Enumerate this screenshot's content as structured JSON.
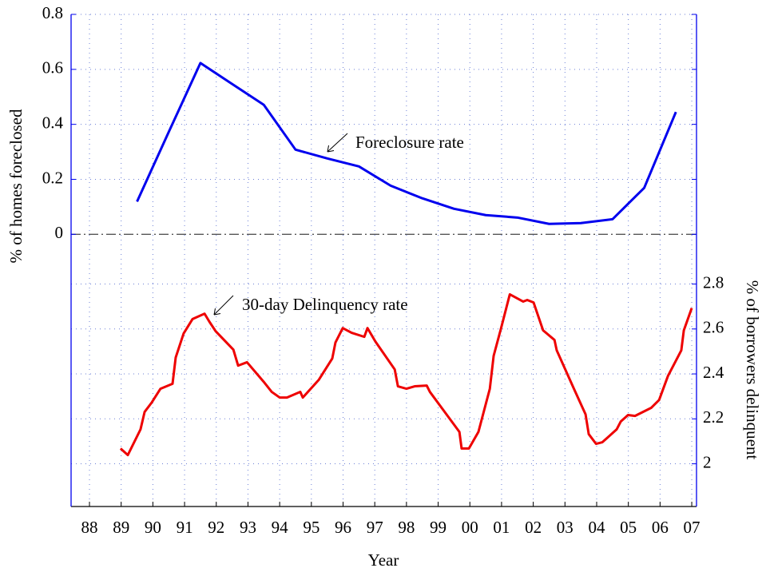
{
  "chart_data": {
    "type": "line",
    "x_label": "Year",
    "y_label": "% of homes foreclosed",
    "y2_label": "% of borrowers delinquent",
    "xlim": [
      1987.42,
      2007.15
    ],
    "xticks": [
      {
        "value": 1988,
        "label": "88"
      },
      {
        "value": 1989,
        "label": "89"
      },
      {
        "value": 1990,
        "label": "90"
      },
      {
        "value": 1991,
        "label": "91"
      },
      {
        "value": 1992,
        "label": "92"
      },
      {
        "value": 1993,
        "label": "93"
      },
      {
        "value": 1994,
        "label": "94"
      },
      {
        "value": 1995,
        "label": "95"
      },
      {
        "value": 1996,
        "label": "96"
      },
      {
        "value": 1997,
        "label": "97"
      },
      {
        "value": 1998,
        "label": "98"
      },
      {
        "value": 1999,
        "label": "99"
      },
      {
        "value": 2000,
        "label": "00"
      },
      {
        "value": 2001,
        "label": "01"
      },
      {
        "value": 2002,
        "label": "02"
      },
      {
        "value": 2003,
        "label": "03"
      },
      {
        "value": 2004,
        "label": "04"
      },
      {
        "value": 2005,
        "label": "05"
      },
      {
        "value": 2006,
        "label": "06"
      },
      {
        "value": 2007,
        "label": "07"
      }
    ],
    "ylim": [
      -0.99,
      0.8
    ],
    "yticks": [
      0,
      0.2,
      0.4,
      0.6,
      0.8
    ],
    "y2lim": [
      1.81,
      4.0
    ],
    "y2ticks": [
      2,
      2.2,
      2.4,
      2.6,
      2.8
    ],
    "grid": true,
    "series": [
      {
        "name": "Foreclosure rate",
        "color": "#0000ee",
        "x": [
          1989.5,
          1990.5,
          1991.5,
          1992.5,
          1993.5,
          1994.5,
          1995.5,
          1996.5,
          1997.5,
          1998.5,
          1999.5,
          2000.5,
          2001.5,
          2002.5,
          2003.5,
          2004.5,
          2005.5,
          2006.5
        ],
        "values": [
          0.119,
          0.372,
          0.623,
          0.547,
          0.471,
          0.308,
          0.276,
          0.247,
          0.177,
          0.131,
          0.093,
          0.07,
          0.061,
          0.038,
          0.041,
          0.055,
          0.169,
          0.445
        ]
      },
      {
        "name": "30-day Delinquency rate",
        "color": "#ee0000",
        "axis": "y2",
        "x": [
          1988.98,
          1989.21,
          1989.61,
          1989.74,
          1989.97,
          1990.24,
          1990.62,
          1990.72,
          1990.97,
          1991.25,
          1991.63,
          1991.78,
          1991.98,
          1992.54,
          1992.69,
          1992.97,
          1993.49,
          1993.75,
          1994.0,
          1994.23,
          1994.65,
          1994.73,
          1995.23,
          1995.66,
          1995.76,
          1995.99,
          1996.27,
          1996.67,
          1996.77,
          1997.02,
          1997.63,
          1997.73,
          1998.0,
          1998.26,
          1998.64,
          1998.74,
          1999.67,
          1999.74,
          1999.97,
          2000.27,
          2000.63,
          2000.75,
          2000.98,
          2001.26,
          2001.68,
          2001.81,
          2002.01,
          2002.31,
          2002.67,
          2002.74,
          2003.27,
          2003.65,
          2003.75,
          2003.98,
          2004.18,
          2004.63,
          2004.76,
          2004.99,
          2005.21,
          2005.72,
          2005.97,
          2006.25,
          2006.67,
          2006.75,
          2007.0
        ],
        "values": [
          2.068,
          2.039,
          2.153,
          2.231,
          2.274,
          2.334,
          2.356,
          2.473,
          2.58,
          2.644,
          2.668,
          2.633,
          2.59,
          2.508,
          2.437,
          2.452,
          2.366,
          2.32,
          2.295,
          2.295,
          2.32,
          2.295,
          2.373,
          2.469,
          2.54,
          2.604,
          2.583,
          2.565,
          2.604,
          2.544,
          2.42,
          2.345,
          2.334,
          2.345,
          2.348,
          2.32,
          2.142,
          2.068,
          2.068,
          2.142,
          2.334,
          2.48,
          2.601,
          2.754,
          2.722,
          2.729,
          2.718,
          2.594,
          2.551,
          2.505,
          2.338,
          2.22,
          2.132,
          2.089,
          2.096,
          2.153,
          2.188,
          2.217,
          2.213,
          2.249,
          2.284,
          2.391,
          2.505,
          2.594,
          2.693
        ]
      }
    ]
  }
}
